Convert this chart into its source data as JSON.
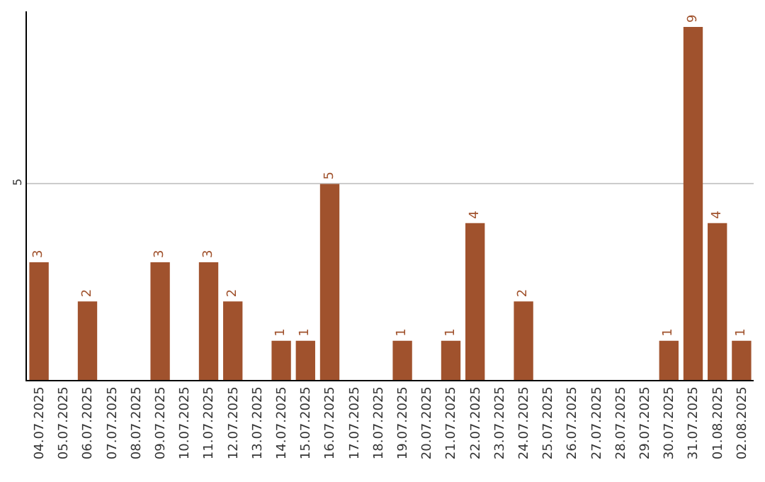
{
  "chart_data": {
    "type": "bar",
    "categories": [
      "04.07.2025",
      "05.07.2025",
      "06.07.2025",
      "07.07.2025",
      "08.07.2025",
      "09.07.2025",
      "10.07.2025",
      "11.07.2025",
      "12.07.2025",
      "13.07.2025",
      "14.07.2025",
      "15.07.2025",
      "16.07.2025",
      "17.07.2025",
      "18.07.2025",
      "19.07.2025",
      "20.07.2025",
      "21.07.2025",
      "22.07.2025",
      "23.07.2025",
      "24.07.2025",
      "25.07.2025",
      "26.07.2025",
      "27.07.2025",
      "28.07.2025",
      "29.07.2025",
      "30.07.2025",
      "31.07.2025",
      "01.08.2025",
      "02.08.2025"
    ],
    "values": [
      3,
      0,
      2,
      0,
      0,
      3,
      0,
      3,
      2,
      0,
      1,
      1,
      5,
      0,
      0,
      1,
      0,
      1,
      4,
      0,
      2,
      0,
      0,
      0,
      0,
      0,
      1,
      9,
      4,
      1
    ],
    "value_labels": [
      "3",
      null,
      "2",
      null,
      null,
      "3",
      null,
      "3",
      "2",
      null,
      "1",
      "1",
      "5",
      null,
      null,
      "1",
      null,
      "1",
      "4",
      null,
      "2",
      null,
      null,
      null,
      null,
      null,
      "1",
      "9",
      "4",
      "1"
    ],
    "color": "#a0522d",
    "ylim": [
      0,
      9.4
    ],
    "yticks": [
      5
    ],
    "grid": "y",
    "legend": false
  }
}
